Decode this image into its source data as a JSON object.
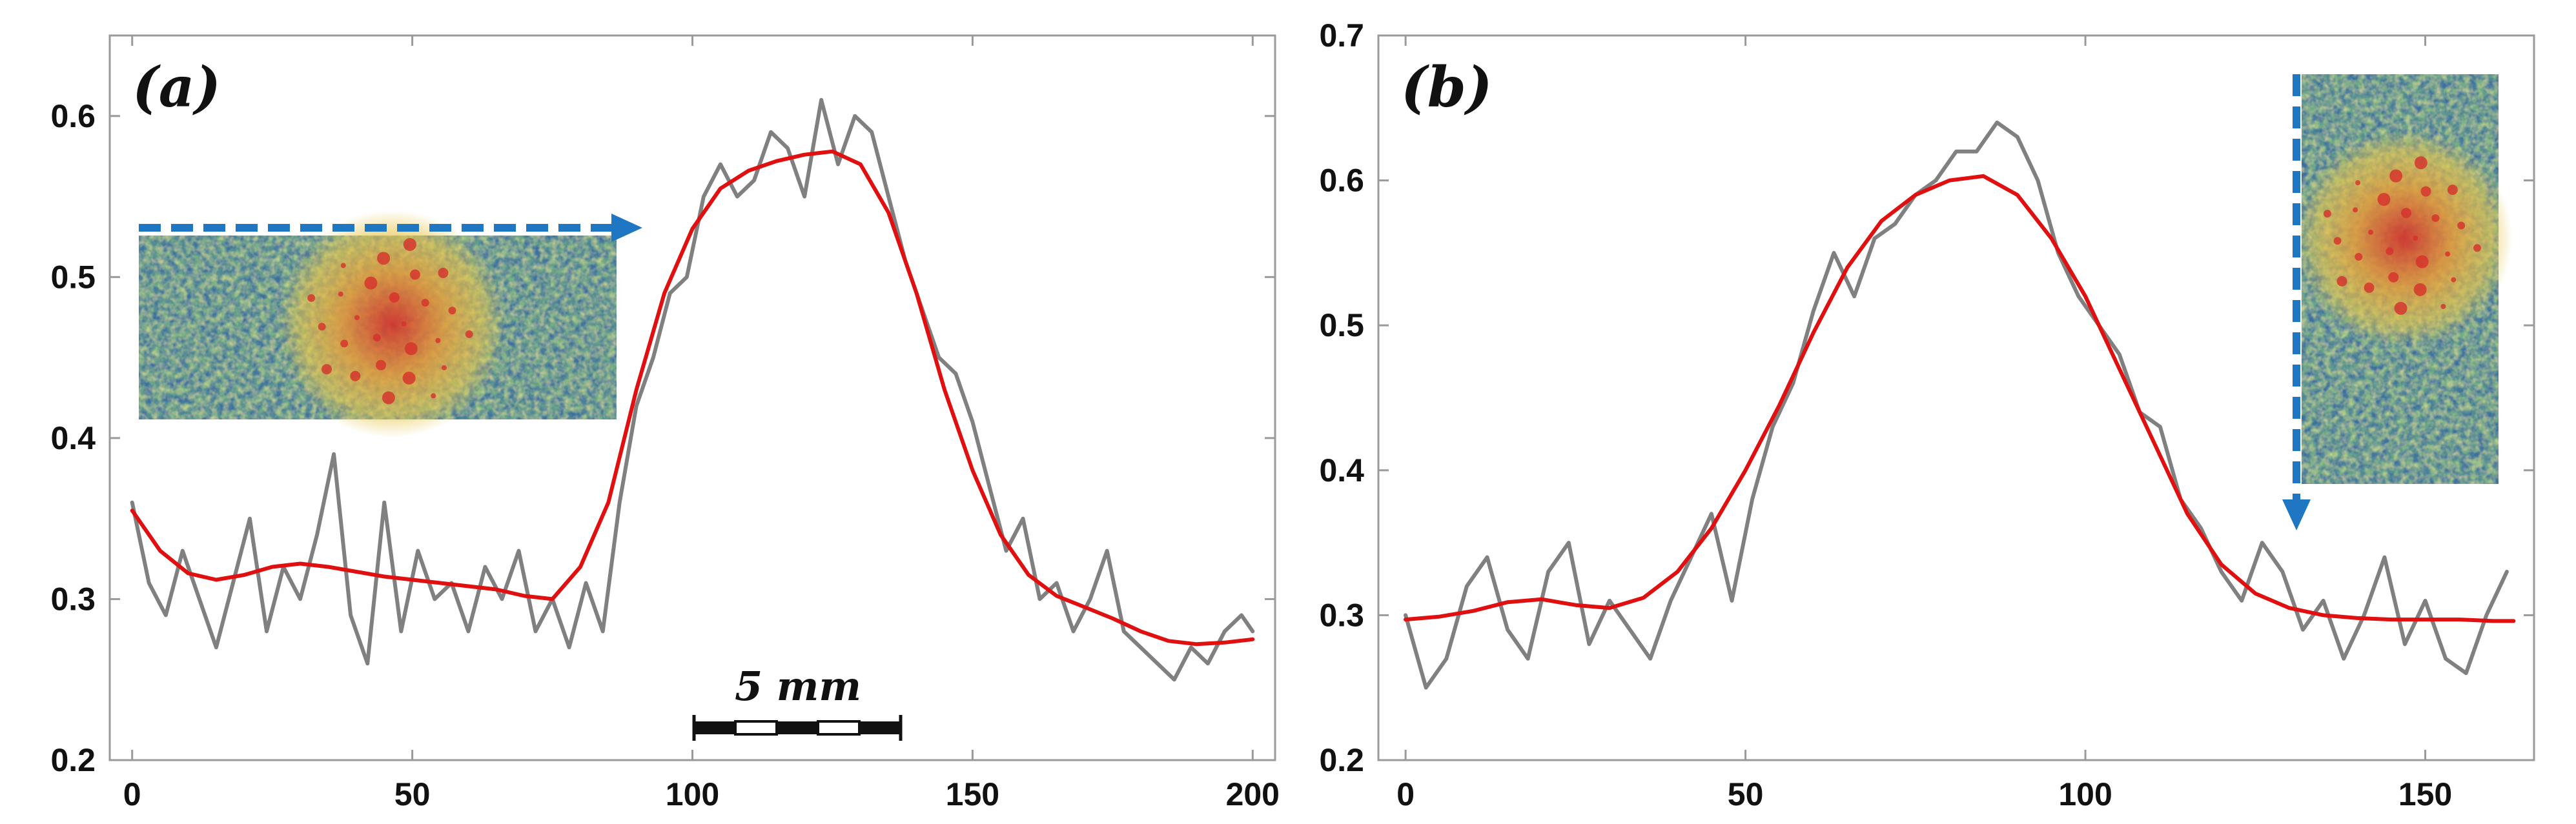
{
  "colors": {
    "raw": "#808080",
    "fit": "#e01010",
    "arrow": "#1f77c4",
    "axis": "#9a9a9a",
    "heat_low": "#3c6fa0",
    "heat_mid": "#8aa24a",
    "heat_high": "#e8c64a",
    "heat_peak": "#d6302a"
  },
  "scale_bar": {
    "label": "5 mm"
  },
  "chart_data": [
    {
      "type": "line",
      "panel_label": "(a)",
      "xlim": [
        -4,
        204
      ],
      "ylim": [
        0.2,
        0.65
      ],
      "xticks": [
        0,
        50,
        100,
        150,
        200
      ],
      "yticks": [
        0.2,
        0.3,
        0.4,
        0.5,
        0.6
      ],
      "tick_labels_x": [
        "0",
        "50",
        "100",
        "150",
        "200"
      ],
      "tick_labels_y": [
        "0.2",
        "0.3",
        "0.4",
        "0.5",
        "0.6"
      ],
      "inset": {
        "orientation": "horizontal",
        "arrow_direction": "right"
      },
      "series": [
        {
          "style": "raw",
          "x": [
            0,
            3,
            6,
            9,
            12,
            15,
            18,
            21,
            24,
            27,
            30,
            33,
            36,
            39,
            42,
            45,
            48,
            51,
            54,
            57,
            60,
            63,
            66,
            69,
            72,
            75,
            78,
            81,
            84,
            87,
            90,
            93,
            96,
            99,
            102,
            105,
            108,
            111,
            114,
            117,
            120,
            123,
            126,
            129,
            132,
            135,
            138,
            141,
            144,
            147,
            150,
            153,
            156,
            159,
            162,
            165,
            168,
            171,
            174,
            177,
            180,
            183,
            186,
            189,
            192,
            195,
            198,
            200
          ],
          "y": [
            0.36,
            0.31,
            0.29,
            0.33,
            0.3,
            0.27,
            0.31,
            0.35,
            0.28,
            0.32,
            0.3,
            0.34,
            0.39,
            0.29,
            0.26,
            0.36,
            0.28,
            0.33,
            0.3,
            0.31,
            0.28,
            0.32,
            0.3,
            0.33,
            0.28,
            0.3,
            0.27,
            0.31,
            0.28,
            0.36,
            0.42,
            0.45,
            0.49,
            0.5,
            0.55,
            0.57,
            0.55,
            0.56,
            0.59,
            0.58,
            0.55,
            0.61,
            0.57,
            0.6,
            0.59,
            0.55,
            0.51,
            0.48,
            0.45,
            0.44,
            0.41,
            0.37,
            0.33,
            0.35,
            0.3,
            0.31,
            0.28,
            0.3,
            0.33,
            0.28,
            0.27,
            0.26,
            0.25,
            0.27,
            0.26,
            0.28,
            0.29,
            0.28
          ]
        },
        {
          "style": "fit",
          "x": [
            0,
            5,
            10,
            15,
            20,
            25,
            30,
            35,
            40,
            45,
            50,
            55,
            60,
            65,
            70,
            75,
            80,
            85,
            90,
            95,
            100,
            105,
            110,
            115,
            120,
            125,
            130,
            135,
            140,
            145,
            150,
            155,
            160,
            165,
            170,
            175,
            180,
            185,
            190,
            195,
            200
          ],
          "y": [
            0.355,
            0.33,
            0.316,
            0.312,
            0.315,
            0.32,
            0.322,
            0.32,
            0.317,
            0.314,
            0.312,
            0.31,
            0.308,
            0.306,
            0.302,
            0.3,
            0.32,
            0.36,
            0.43,
            0.49,
            0.53,
            0.555,
            0.566,
            0.572,
            0.576,
            0.578,
            0.57,
            0.54,
            0.49,
            0.43,
            0.38,
            0.34,
            0.315,
            0.302,
            0.295,
            0.288,
            0.28,
            0.274,
            0.272,
            0.273,
            0.275
          ]
        }
      ]
    },
    {
      "type": "line",
      "panel_label": "(b)",
      "xlim": [
        -4,
        166
      ],
      "ylim": [
        0.2,
        0.7
      ],
      "xticks": [
        0,
        50,
        100,
        150
      ],
      "yticks": [
        0.2,
        0.3,
        0.4,
        0.5,
        0.6,
        0.7
      ],
      "tick_labels_x": [
        "0",
        "50",
        "100",
        "150"
      ],
      "tick_labels_y": [
        "0.2",
        "0.3",
        "0.4",
        "0.5",
        "0.6",
        "0.7"
      ],
      "inset": {
        "orientation": "vertical",
        "arrow_direction": "down"
      },
      "series": [
        {
          "style": "raw",
          "x": [
            0,
            3,
            6,
            9,
            12,
            15,
            18,
            21,
            24,
            27,
            30,
            33,
            36,
            39,
            42,
            45,
            48,
            51,
            54,
            57,
            60,
            63,
            66,
            69,
            72,
            75,
            78,
            81,
            84,
            87,
            90,
            93,
            96,
            99,
            102,
            105,
            108,
            111,
            114,
            117,
            120,
            123,
            126,
            129,
            132,
            135,
            138,
            141,
            144,
            147,
            150,
            153,
            156,
            159,
            162
          ],
          "y": [
            0.3,
            0.25,
            0.27,
            0.32,
            0.34,
            0.29,
            0.27,
            0.33,
            0.35,
            0.28,
            0.31,
            0.29,
            0.27,
            0.31,
            0.34,
            0.37,
            0.31,
            0.38,
            0.43,
            0.46,
            0.51,
            0.55,
            0.52,
            0.56,
            0.57,
            0.59,
            0.6,
            0.62,
            0.62,
            0.64,
            0.63,
            0.6,
            0.55,
            0.52,
            0.5,
            0.48,
            0.44,
            0.43,
            0.38,
            0.36,
            0.33,
            0.31,
            0.35,
            0.33,
            0.29,
            0.31,
            0.27,
            0.3,
            0.34,
            0.28,
            0.31,
            0.27,
            0.26,
            0.3,
            0.33
          ]
        },
        {
          "style": "fit",
          "x": [
            0,
            5,
            10,
            15,
            20,
            25,
            30,
            35,
            40,
            45,
            50,
            55,
            60,
            65,
            70,
            75,
            80,
            85,
            90,
            95,
            100,
            105,
            110,
            115,
            120,
            125,
            130,
            135,
            140,
            145,
            150,
            155,
            160,
            163
          ],
          "y": [
            0.297,
            0.299,
            0.303,
            0.309,
            0.311,
            0.307,
            0.305,
            0.312,
            0.33,
            0.36,
            0.4,
            0.445,
            0.495,
            0.54,
            0.572,
            0.59,
            0.6,
            0.603,
            0.59,
            0.56,
            0.52,
            0.47,
            0.42,
            0.37,
            0.335,
            0.315,
            0.305,
            0.3,
            0.298,
            0.297,
            0.297,
            0.297,
            0.296,
            0.296
          ]
        }
      ]
    }
  ]
}
